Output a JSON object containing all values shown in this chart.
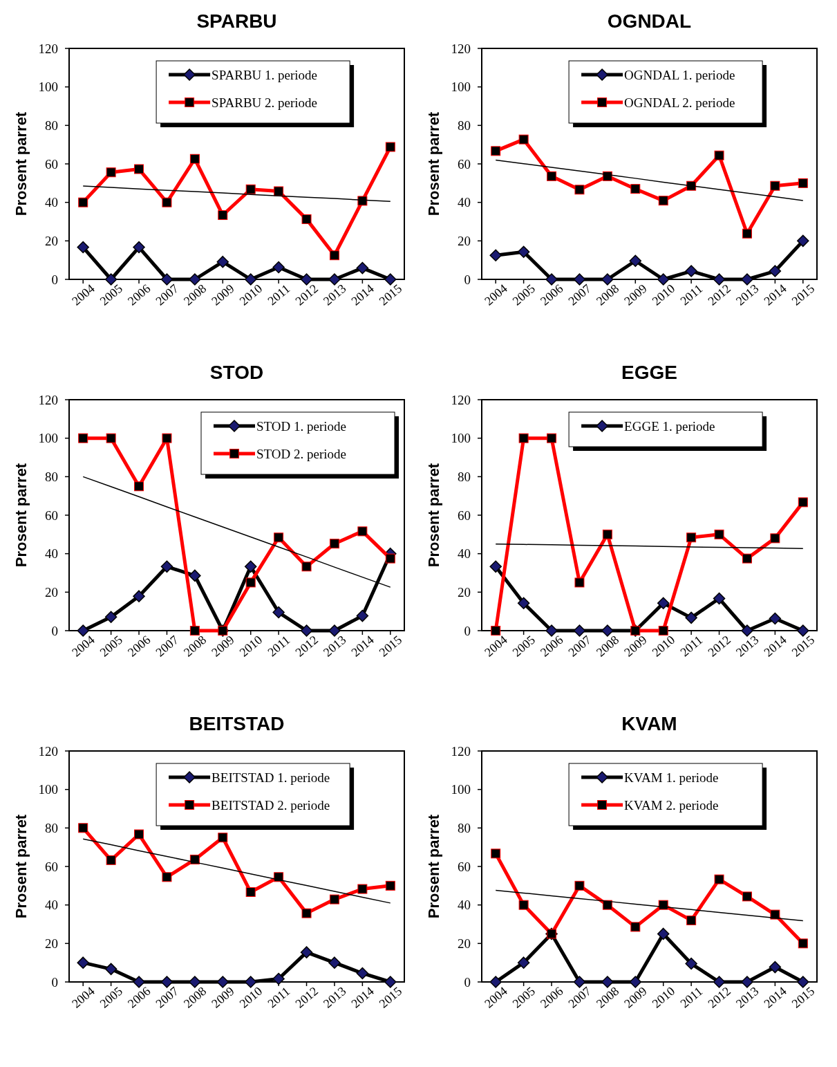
{
  "chart_data": [
    {
      "type": "line",
      "title": "SPARBU",
      "ylabel": "Prosent parret",
      "categories": [
        "2004",
        "2005",
        "2006",
        "2007",
        "2008",
        "2009",
        "2010",
        "2011",
        "2012",
        "2013",
        "2014",
        "2015"
      ],
      "ylim": [
        0,
        120
      ],
      "yticks": [
        0,
        20,
        40,
        60,
        80,
        100,
        120
      ],
      "grid": false,
      "legend": "top",
      "series": [
        {
          "name": "SPARBU 1. periode",
          "color": "#000000",
          "marker": "diamond",
          "values": [
            16.7,
            0,
            16.7,
            0,
            0,
            9.1,
            0,
            6.3,
            0,
            0,
            5.9,
            0
          ]
        },
        {
          "name": "SPARBU 2. periode",
          "color": "#ff0000",
          "marker": "square",
          "values": [
            40,
            55.6,
            57.3,
            40,
            62.6,
            33.4,
            46.8,
            45.8,
            31.3,
            12.5,
            40.8,
            68.8
          ]
        },
        {
          "color": "#000000",
          "marker": "none",
          "values": [
            48.5,
            47.8,
            47.0,
            46.3,
            45.6,
            44.9,
            44.1,
            43.4,
            42.7,
            42.0,
            41.2,
            40.5
          ]
        }
      ]
    },
    {
      "type": "line",
      "title": "OGNDAL",
      "ylabel": "Prosent parret",
      "categories": [
        "2004",
        "2005",
        "2006",
        "2007",
        "2008",
        "2009",
        "2010",
        "2011",
        "2012",
        "2013",
        "2014",
        "2015"
      ],
      "ylim": [
        0,
        120
      ],
      "yticks": [
        0,
        20,
        40,
        60,
        80,
        100,
        120
      ],
      "grid": false,
      "legend": "top",
      "series": [
        {
          "name": "OGNDAL 1. periode",
          "color": "#000000",
          "marker": "diamond",
          "values": [
            12.5,
            14.3,
            0,
            0,
            0,
            9.6,
            0,
            4.3,
            0,
            0,
            4.3,
            20
          ]
        },
        {
          "name": "OGNDAL 2. periode",
          "color": "#ff0000",
          "marker": "square",
          "values": [
            66.7,
            72.7,
            53.6,
            46.6,
            53.6,
            47,
            40.9,
            48.6,
            64.4,
            23.8,
            48.6,
            50
          ]
        },
        {
          "color": "#000000",
          "marker": "none",
          "values": [
            62,
            60.1,
            58.2,
            56.3,
            54.4,
            52.5,
            50.5,
            48.6,
            46.7,
            44.8,
            42.9,
            41
          ]
        }
      ]
    },
    {
      "type": "line",
      "title": "STOD",
      "ylabel": "Prosent parret",
      "categories": [
        "2004",
        "2005",
        "2006",
        "2007",
        "2008",
        "2009",
        "2010",
        "2011",
        "2012",
        "2013",
        "2014",
        "2015"
      ],
      "ylim": [
        0,
        120
      ],
      "yticks": [
        0,
        20,
        40,
        60,
        80,
        100,
        120
      ],
      "grid": false,
      "legend": "top right",
      "series": [
        {
          "name": "STOD 1. periode",
          "color": "#000000",
          "marker": "diamond",
          "values": [
            0,
            7.1,
            17.9,
            33.3,
            28.6,
            0,
            33.3,
            9.5,
            0,
            0,
            7.7,
            40
          ]
        },
        {
          "name": "STOD 2. periode",
          "color": "#ff0000",
          "marker": "square",
          "values": [
            100,
            100,
            75,
            100,
            0,
            0,
            25,
            48.4,
            33.3,
            45.2,
            51.6,
            37.5
          ]
        },
        {
          "color": "#000000",
          "marker": "none",
          "values": [
            80,
            74.8,
            69.6,
            64.3,
            59.1,
            53.9,
            48.7,
            43.5,
            38.3,
            33.0,
            27.8,
            22.6
          ]
        }
      ]
    },
    {
      "type": "line",
      "title": "EGGE",
      "ylabel": "Prosent parret",
      "categories": [
        "2004",
        "2005",
        "2006",
        "2007",
        "2008",
        "2009",
        "2010",
        "2011",
        "2012",
        "2013",
        "2014",
        "2015"
      ],
      "ylim": [
        0,
        120
      ],
      "yticks": [
        0,
        20,
        40,
        60,
        80,
        100,
        120
      ],
      "grid": false,
      "legend": "top",
      "series": [
        {
          "name": "EGGE 1. periode",
          "color": "#000000",
          "marker": "diamond",
          "values": [
            33.3,
            14.3,
            0,
            0,
            0,
            0,
            14.3,
            6.7,
            16.7,
            0,
            6.3,
            0
          ]
        },
        {
          "color": "#ff0000",
          "marker": "square",
          "values": [
            0,
            100,
            100,
            25,
            50,
            0,
            0,
            48.4,
            50,
            37.5,
            48,
            66.7
          ]
        },
        {
          "color": "#000000",
          "marker": "none",
          "values": [
            45,
            44.8,
            44.6,
            44.4,
            44.2,
            44.0,
            43.7,
            43.5,
            43.3,
            43.1,
            42.9,
            42.7
          ]
        }
      ]
    },
    {
      "type": "line",
      "title": "BEITSTAD",
      "ylabel": "Prosent parret",
      "categories": [
        "2004",
        "2005",
        "2006",
        "2007",
        "2008",
        "2009",
        "2010",
        "2011",
        "2012",
        "2013",
        "2014",
        "2015"
      ],
      "ylim": [
        0,
        120
      ],
      "yticks": [
        0,
        20,
        40,
        60,
        80,
        100,
        120
      ],
      "grid": false,
      "legend": "top",
      "series": [
        {
          "name": "BEITSTAD 1. periode",
          "color": "#000000",
          "marker": "diamond",
          "values": [
            10,
            6.7,
            0,
            0,
            0,
            0,
            0,
            1.6,
            15.4,
            10,
            4.5,
            0
          ]
        },
        {
          "name": "BEITSTAD 2. periode",
          "color": "#ff0000",
          "marker": "square",
          "values": [
            80,
            63.3,
            76.7,
            54.5,
            63.6,
            75,
            46.7,
            54.5,
            35.7,
            42.9,
            48.3,
            50
          ]
        },
        {
          "color": "#000000",
          "marker": "none",
          "values": [
            74.3,
            71.3,
            68.2,
            65.2,
            62.2,
            59.2,
            56.1,
            53.1,
            50.1,
            47.1,
            44.0,
            41
          ]
        }
      ]
    },
    {
      "type": "line",
      "title": "KVAM",
      "ylabel": "Prosent parret",
      "categories": [
        "2004",
        "2005",
        "2006",
        "2007",
        "2008",
        "2009",
        "2010",
        "2011",
        "2012",
        "2013",
        "2014",
        "2015"
      ],
      "ylim": [
        0,
        120
      ],
      "yticks": [
        0,
        20,
        40,
        60,
        80,
        100,
        120
      ],
      "grid": false,
      "legend": "top",
      "series": [
        {
          "name": "KVAM 1. periode",
          "color": "#000000",
          "marker": "diamond",
          "values": [
            0,
            10,
            25,
            0,
            0,
            0,
            25,
            9.5,
            0,
            0,
            7.7,
            0
          ]
        },
        {
          "name": "KVAM 2. periode",
          "color": "#ff0000",
          "marker": "square",
          "values": [
            66.7,
            40,
            25,
            50,
            40,
            28.6,
            40,
            32,
            53.3,
            44.4,
            35,
            20
          ]
        },
        {
          "color": "#000000",
          "marker": "none",
          "values": [
            47.6,
            46.2,
            44.7,
            43.3,
            41.9,
            40.4,
            39.0,
            37.6,
            36.1,
            34.7,
            33.2,
            31.8
          ]
        }
      ]
    }
  ]
}
